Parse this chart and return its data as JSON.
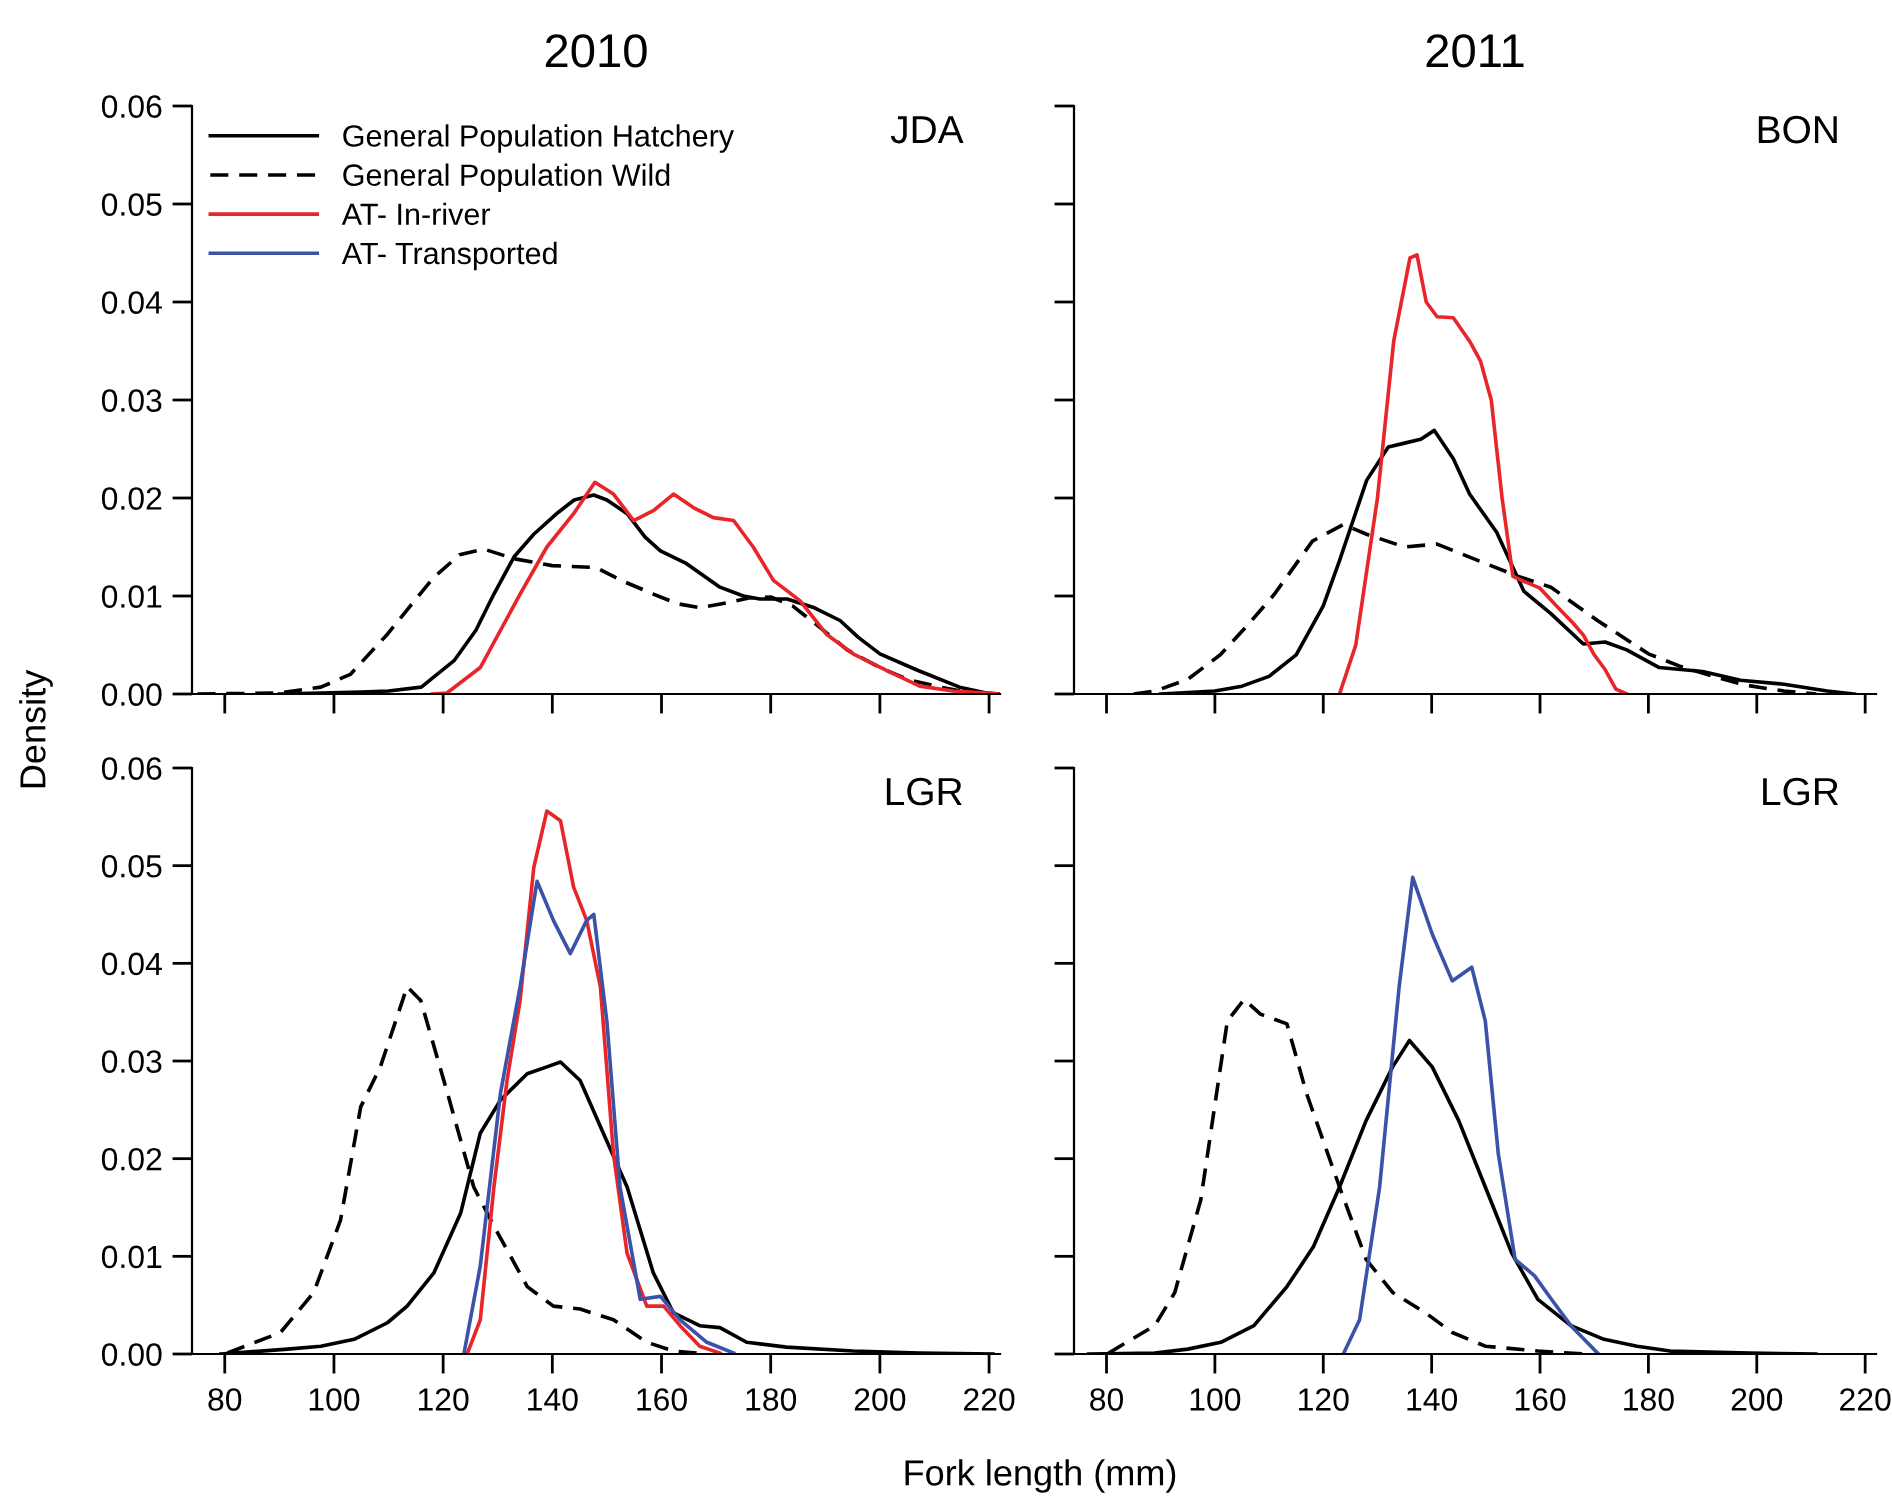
{
  "chart_data": [
    {
      "type": "line",
      "title": "2010",
      "ylabel": "Density",
      "annotations": [
        "JDA"
      ],
      "legend": "top left",
      "tick_labels": "y",
      "xlim": [
        74,
        222
      ],
      "ylim": [
        0,
        0.06
      ],
      "xticks": [
        80,
        100,
        120,
        140,
        160,
        180,
        200,
        220
      ],
      "yticks": [
        {
          "value": 0,
          "label": "0.00"
        },
        {
          "value": 0.01,
          "label": "0.01"
        },
        {
          "value": 0.02,
          "label": "0.02"
        },
        {
          "value": 0.03,
          "label": "0.03"
        },
        {
          "value": 0.04,
          "label": "0.04"
        },
        {
          "value": 0.05,
          "label": "0.05"
        },
        {
          "value": 0.06,
          "label": "0.06"
        }
      ],
      "series": [
        {
          "name": "General Population Hatchery",
          "color": "#000000",
          "line_style": "solid",
          "x": [
            90,
            105,
            110,
            116,
            122,
            126,
            129.3,
            133,
            136.6,
            141,
            144,
            147.6,
            150,
            153.7,
            157,
            159.8,
            164.6,
            170.7,
            175,
            178,
            183,
            188,
            192.7,
            196,
            200,
            207,
            214.6,
            219.5,
            222
          ],
          "values": [
            0,
            0.0002,
            0.0003,
            0.0007,
            0.0034,
            0.0065,
            0.0102,
            0.014,
            0.0163,
            0.0185,
            0.0198,
            0.0203,
            0.0198,
            0.0184,
            0.016,
            0.0146,
            0.0133,
            0.0109,
            0.01,
            0.0097,
            0.0097,
            0.0088,
            0.0075,
            0.0058,
            0.0041,
            0.0024,
            0.0007,
            0.0001,
            0
          ]
        },
        {
          "name": "General Population Wild",
          "color": "#000000",
          "line_style": "dashed",
          "x": [
            75,
            90,
            97.6,
            103,
            109.8,
            114,
            118.3,
            123,
            127.4,
            133,
            140,
            148,
            153,
            158.5,
            163,
            167,
            172,
            176,
            180,
            184,
            189,
            194,
            200,
            205,
            211,
            216,
            222
          ],
          "values": [
            0,
            0.0001,
            0.0007,
            0.002,
            0.0061,
            0.009,
            0.0119,
            0.0142,
            0.0148,
            0.0138,
            0.0131,
            0.0129,
            0.0115,
            0.0102,
            0.0092,
            0.0088,
            0.0093,
            0.0098,
            0.0099,
            0.009,
            0.0068,
            0.0045,
            0.0027,
            0.0015,
            0.0007,
            0.0002,
            0
          ]
        },
        {
          "name": "AT- In-river",
          "color": "#e8262a",
          "line_style": "solid",
          "x": [
            118,
            120.7,
            126.8,
            134.1,
            139,
            143.9,
            147.8,
            151.2,
            154.9,
            158.5,
            162.2,
            165.9,
            169.5,
            173.2,
            176.8,
            180.5,
            185.4,
            190.2,
            195.1,
            201.2,
            207.3,
            213.4,
            219.5,
            222
          ],
          "values": [
            0,
            0.0001,
            0.0027,
            0.0102,
            0.015,
            0.0184,
            0.0216,
            0.0204,
            0.0177,
            0.0187,
            0.0204,
            0.019,
            0.018,
            0.0177,
            0.015,
            0.0116,
            0.0095,
            0.0061,
            0.0041,
            0.0024,
            0.0008,
            0.0003,
            0.0001,
            0
          ]
        },
        {
          "name": "AT- Transported",
          "color": "#3a52a8",
          "line_style": "solid"
        }
      ]
    },
    {
      "type": "line",
      "title": "2011",
      "annotations": [
        "BON"
      ],
      "tick_labels": false,
      "xlim": [
        74,
        222
      ],
      "ylim": [
        0,
        0.06
      ],
      "xticks": [
        80,
        100,
        120,
        140,
        160,
        180,
        200,
        220
      ],
      "yticks": [
        0,
        0.01,
        0.02,
        0.03,
        0.04,
        0.05,
        0.06
      ],
      "series": [
        {
          "color": "#000000",
          "line_style": "solid",
          "x": [
            90,
            100,
            105,
            110,
            115,
            120,
            123,
            128,
            132,
            135,
            138,
            140.5,
            144,
            147,
            152,
            157,
            162,
            168,
            172,
            176,
            182,
            190,
            197,
            205,
            213,
            218
          ],
          "values": [
            0,
            0.0003,
            0.0008,
            0.0018,
            0.004,
            0.009,
            0.0136,
            0.0218,
            0.0252,
            0.0256,
            0.026,
            0.0269,
            0.024,
            0.0204,
            0.0165,
            0.0105,
            0.0082,
            0.0051,
            0.0053,
            0.0045,
            0.0027,
            0.0023,
            0.0014,
            0.001,
            0.0003,
            0
          ]
        },
        {
          "color": "#000000",
          "line_style": "dashed",
          "x": [
            85,
            89,
            95,
            101,
            106,
            111,
            118,
            123.7,
            128,
            135,
            141,
            150,
            156,
            162,
            170.6,
            180,
            186,
            192.6,
            198,
            205,
            211
          ],
          "values": [
            0,
            0.0003,
            0.0015,
            0.004,
            0.007,
            0.0102,
            0.0156,
            0.0173,
            0.0163,
            0.015,
            0.0153,
            0.0133,
            0.012,
            0.0109,
            0.0075,
            0.0041,
            0.0028,
            0.0017,
            0.0009,
            0.0003,
            0
          ]
        },
        {
          "color": "#e8262a",
          "line_style": "solid",
          "x": [
            123,
            126,
            130,
            133,
            136,
            137.3,
            139,
            141,
            144,
            147,
            149,
            151,
            153,
            155,
            157,
            160,
            163,
            166,
            168,
            170,
            172,
            174,
            176
          ],
          "values": [
            0,
            0.005,
            0.02,
            0.036,
            0.0445,
            0.0448,
            0.04,
            0.0385,
            0.0384,
            0.036,
            0.034,
            0.03,
            0.02,
            0.012,
            0.0115,
            0.0108,
            0.009,
            0.0073,
            0.006,
            0.004,
            0.0025,
            0.0005,
            0
          ]
        }
      ]
    },
    {
      "type": "line",
      "xlabel": "Fork length (mm)",
      "annotations": [
        "LGR"
      ],
      "xlim": [
        74,
        222
      ],
      "ylim": [
        0,
        0.06
      ],
      "xticks": [
        80,
        100,
        120,
        140,
        160,
        180,
        200,
        220
      ],
      "yticks": [
        {
          "value": 0,
          "label": "0.00"
        },
        {
          "value": 0.01,
          "label": "0.01"
        },
        {
          "value": 0.02,
          "label": "0.02"
        },
        {
          "value": 0.03,
          "label": "0.03"
        },
        {
          "value": 0.04,
          "label": "0.04"
        },
        {
          "value": 0.05,
          "label": "0.05"
        },
        {
          "value": 0.06,
          "label": "0.06"
        }
      ],
      "series": [
        {
          "color": "#000000",
          "line_style": "solid",
          "x": [
            79.3,
            91.5,
            97.6,
            103.7,
            109.8,
            113.4,
            118.3,
            123.2,
            126.8,
            130.5,
            135.4,
            139,
            141.5,
            145.1,
            148.8,
            153.7,
            158.5,
            162.2,
            167,
            170.7,
            175.6,
            182.9,
            195.1,
            207.3,
            220.7
          ],
          "values": [
            0,
            0.0005,
            0.0008,
            0.0015,
            0.0032,
            0.0049,
            0.0083,
            0.0144,
            0.0226,
            0.026,
            0.0287,
            0.0294,
            0.0299,
            0.028,
            0.0233,
            0.0171,
            0.0083,
            0.0042,
            0.0029,
            0.0027,
            0.0012,
            0.0007,
            0.0003,
            0.0001,
            0
          ]
        },
        {
          "color": "#000000",
          "line_style": "dashed",
          "x": [
            80.5,
            90.2,
            96.3,
            101.2,
            104.9,
            108.5,
            113.4,
            115.9,
            120.8,
            125.6,
            129.3,
            135.4,
            140.2,
            145.1,
            151.2,
            157.3,
            162.2,
            168.3
          ],
          "values": [
            0.0001,
            0.0022,
            0.0063,
            0.0137,
            0.0253,
            0.0294,
            0.0376,
            0.0362,
            0.0267,
            0.0171,
            0.0131,
            0.0069,
            0.0049,
            0.0046,
            0.0035,
            0.0012,
            0.0003,
            0
          ]
        },
        {
          "color": "#e8262a",
          "line_style": "solid",
          "x": [
            124.4,
            126.8,
            129.3,
            131.7,
            134.1,
            136.6,
            139,
            141.5,
            143.9,
            146.3,
            148.8,
            151.2,
            153.7,
            157.3,
            160.4,
            163.4,
            167,
            170.7
          ],
          "values": [
            0,
            0.0035,
            0.0171,
            0.028,
            0.0362,
            0.0498,
            0.0556,
            0.0546,
            0.0478,
            0.0444,
            0.0376,
            0.0205,
            0.0103,
            0.0049,
            0.0049,
            0.0029,
            0.0008,
            0.0001
          ]
        },
        {
          "color": "#3a52a8",
          "line_style": "solid",
          "x": [
            123.8,
            126.8,
            130.5,
            134.1,
            137.2,
            140.2,
            143.3,
            146.3,
            147.6,
            150,
            152.4,
            156.1,
            159.8,
            163.4,
            168.3,
            173.2
          ],
          "values": [
            0,
            0.009,
            0.0267,
            0.0376,
            0.0484,
            0.0444,
            0.041,
            0.0444,
            0.045,
            0.034,
            0.0171,
            0.0056,
            0.0059,
            0.0035,
            0.0012,
            0.0001
          ]
        }
      ]
    },
    {
      "type": "line",
      "annotations": [
        "LGR"
      ],
      "tick_labels": "x",
      "xlim": [
        74,
        222
      ],
      "ylim": [
        0,
        0.06
      ],
      "xticks": [
        80,
        100,
        120,
        140,
        160,
        180,
        200,
        220
      ],
      "yticks": [
        0,
        0.01,
        0.02,
        0.03,
        0.04,
        0.05,
        0.06
      ],
      "series": [
        {
          "color": "#000000",
          "line_style": "solid",
          "x": [
            76.7,
            88.9,
            95,
            101.1,
            107.2,
            113.3,
            118.2,
            123,
            127.9,
            132.8,
            135.9,
            140.1,
            145,
            149.9,
            154.8,
            159.6,
            165.7,
            171.8,
            177.9,
            184,
            198.7,
            210.9
          ],
          "values": [
            0,
            0.0001,
            0.0005,
            0.0012,
            0.0029,
            0.0069,
            0.011,
            0.0171,
            0.0239,
            0.0294,
            0.0321,
            0.0294,
            0.0239,
            0.0171,
            0.0103,
            0.0056,
            0.0029,
            0.0015,
            0.0008,
            0.0003,
            0.0001,
            0
          ]
        },
        {
          "color": "#000000",
          "line_style": "dashed",
          "x": [
            80.4,
            88.9,
            92.6,
            97.4,
            102.3,
            105.4,
            108.4,
            113.3,
            116.9,
            123,
            127.9,
            132.8,
            138.9,
            143.8,
            149.9,
            159.6,
            168.2
          ],
          "values": [
            0.0001,
            0.0029,
            0.0063,
            0.0158,
            0.0341,
            0.0363,
            0.0348,
            0.0338,
            0.0267,
            0.0171,
            0.0097,
            0.0063,
            0.0042,
            0.0022,
            0.0008,
            0.0003,
            0
          ]
        },
        {
          "color": "#3a52a8",
          "line_style": "solid",
          "x": [
            123.7,
            126.7,
            130.4,
            134,
            136.5,
            140.1,
            143.8,
            147.4,
            149.9,
            152.3,
            155.4,
            159,
            162.1,
            165.7,
            170.6
          ],
          "values": [
            0,
            0.0035,
            0.0171,
            0.0376,
            0.0488,
            0.043,
            0.0382,
            0.0396,
            0.0341,
            0.0205,
            0.0097,
            0.008,
            0.0056,
            0.0029,
            0.0001
          ]
        }
      ]
    }
  ]
}
